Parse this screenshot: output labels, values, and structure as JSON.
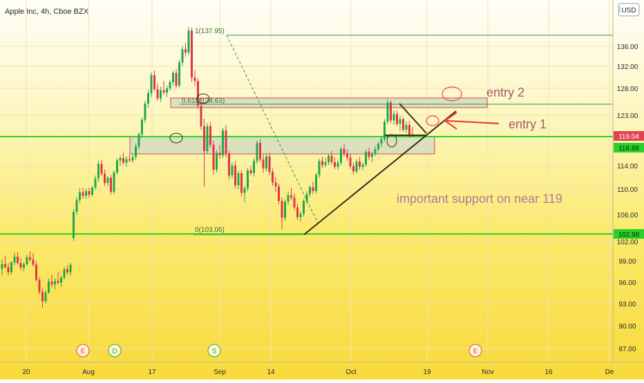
{
  "header": {
    "title": "Apple Inc, 4h, Cboe BZX",
    "currency": "USD"
  },
  "chart_data": {
    "type": "candlestick",
    "title": "Apple Inc, 4h, Cboe BZX",
    "y_ticks": [
      "136.00",
      "132.00",
      "128.00",
      "123.00",
      "114.00",
      "110.00",
      "106.00",
      "102.00",
      "99.00",
      "96.00",
      "93.00",
      "90.00",
      "87.00"
    ],
    "x_ticks": [
      "20",
      "Aug",
      "17",
      "Sep",
      "14",
      "Oct",
      "19",
      "Nov",
      "16",
      "De"
    ],
    "price_tags": {
      "current": "119.04",
      "support": "118.88",
      "low_line": "102.98"
    },
    "fib_levels": [
      {
        "label": "1(137.95)",
        "price": 137.95
      },
      {
        "label": "0.618(124.63)",
        "price": 124.63
      },
      {
        "label": "0(103.06)",
        "price": 103.06
      }
    ],
    "events": [
      {
        "label": "E",
        "kind": "earnings",
        "x": "Jul 30"
      },
      {
        "label": "D",
        "kind": "dividend",
        "x": "Aug 7"
      },
      {
        "label": "S",
        "kind": "split",
        "x": "Aug 31"
      },
      {
        "label": "E",
        "kind": "earnings",
        "x": "Oct 29"
      }
    ],
    "annotations": {
      "entry1": "entry 1",
      "entry2": "entry 2",
      "support_note": "important support on near 119"
    },
    "candles": [
      [
        96.2,
        97.8,
        95.1,
        97.0
      ],
      [
        97.0,
        98.5,
        96.3,
        96.5
      ],
      [
        96.5,
        97.2,
        95.0,
        95.6
      ],
      [
        95.6,
        97.5,
        95.2,
        97.3
      ],
      [
        97.3,
        99.0,
        96.8,
        98.3
      ],
      [
        98.3,
        99.1,
        96.9,
        97.2
      ],
      [
        97.2,
        98.0,
        96.0,
        96.4
      ],
      [
        96.4,
        97.3,
        95.8,
        97.0
      ],
      [
        97.0,
        98.6,
        96.7,
        98.2
      ],
      [
        98.2,
        99.2,
        97.5,
        97.8
      ],
      [
        97.8,
        98.9,
        96.6,
        96.9
      ],
      [
        96.9,
        97.5,
        94.0,
        94.3
      ],
      [
        94.3,
        94.8,
        91.8,
        92.2
      ],
      [
        92.2,
        92.8,
        89.5,
        90.6
      ],
      [
        90.6,
        92.5,
        90.2,
        92.1
      ],
      [
        92.1,
        94.5,
        91.9,
        94.0
      ],
      [
        94.0,
        95.2,
        93.0,
        93.5
      ],
      [
        93.5,
        94.6,
        92.6,
        94.1
      ],
      [
        94.1,
        95.6,
        93.5,
        93.8
      ],
      [
        93.8,
        95.0,
        93.1,
        94.7
      ],
      [
        94.7,
        96.5,
        94.3,
        96.1
      ],
      [
        96.1,
        96.8,
        95.2,
        95.6
      ],
      [
        95.6,
        97.2,
        95.0,
        96.9
      ],
      [
        101.5,
        106.5,
        101.0,
        106.0
      ],
      [
        106.0,
        108.6,
        105.5,
        108.1
      ],
      [
        108.1,
        110.1,
        107.5,
        109.4
      ],
      [
        109.4,
        110.2,
        108.3,
        108.8
      ],
      [
        108.8,
        110.0,
        108.2,
        109.6
      ],
      [
        109.6,
        110.2,
        108.5,
        109.0
      ],
      [
        109.0,
        110.5,
        108.7,
        110.2
      ],
      [
        110.2,
        112.3,
        109.8,
        111.8
      ],
      [
        111.8,
        114.8,
        111.2,
        114.3
      ],
      [
        114.3,
        115.0,
        112.2,
        112.6
      ],
      [
        112.6,
        113.3,
        110.5,
        111.0
      ],
      [
        111.0,
        112.2,
        110.4,
        111.9
      ],
      [
        111.9,
        112.4,
        109.0,
        109.5
      ],
      [
        109.5,
        113.2,
        109.1,
        112.8
      ],
      [
        112.8,
        115.2,
        112.5,
        114.9
      ],
      [
        114.9,
        115.8,
        114.0,
        115.3
      ],
      [
        115.3,
        116.2,
        114.2,
        114.5
      ],
      [
        114.5,
        115.6,
        113.8,
        115.1
      ],
      [
        115.1,
        115.9,
        114.6,
        114.9
      ],
      [
        114.9,
        116.0,
        114.5,
        115.5
      ],
      [
        115.5,
        117.8,
        115.0,
        117.3
      ],
      [
        117.3,
        119.8,
        116.8,
        119.4
      ],
      [
        119.4,
        122.3,
        118.8,
        121.9
      ],
      [
        121.9,
        125.2,
        121.3,
        124.7
      ],
      [
        124.7,
        127.0,
        124.0,
        126.5
      ],
      [
        126.5,
        130.1,
        125.8,
        129.6
      ],
      [
        129.6,
        130.4,
        126.8,
        127.2
      ],
      [
        127.2,
        128.2,
        125.2,
        125.6
      ],
      [
        125.6,
        127.6,
        125.0,
        127.0
      ],
      [
        127.0,
        128.6,
        126.2,
        126.6
      ],
      [
        126.6,
        127.8,
        125.8,
        127.3
      ],
      [
        127.3,
        128.8,
        126.9,
        128.4
      ],
      [
        128.4,
        130.4,
        127.8,
        130.0
      ],
      [
        130.0,
        130.7,
        127.4,
        127.8
      ],
      [
        127.8,
        132.3,
        127.5,
        131.8
      ],
      [
        131.8,
        134.6,
        131.2,
        134.1
      ],
      [
        134.1,
        135.2,
        132.8,
        133.5
      ],
      [
        133.5,
        137.95,
        133.0,
        137.3
      ],
      [
        137.3,
        137.8,
        128.5,
        129.2
      ],
      [
        129.2,
        130.5,
        127.8,
        128.6
      ],
      [
        128.6,
        129.1,
        123.8,
        124.3
      ],
      [
        124.3,
        125.6,
        120.2,
        120.8
      ],
      [
        120.8,
        122.1,
        110.4,
        116.5
      ],
      [
        116.5,
        121.3,
        116.0,
        120.8
      ],
      [
        120.8,
        121.5,
        117.1,
        117.6
      ],
      [
        117.6,
        118.3,
        112.5,
        113.3
      ],
      [
        113.3,
        116.7,
        112.8,
        116.2
      ],
      [
        116.2,
        117.6,
        115.2,
        115.8
      ],
      [
        115.8,
        120.5,
        115.3,
        120.1
      ],
      [
        120.1,
        121.0,
        115.4,
        116.0
      ],
      [
        116.0,
        116.5,
        111.6,
        112.3
      ],
      [
        112.3,
        114.6,
        111.8,
        114.0
      ],
      [
        114.0,
        114.8,
        110.1,
        110.6
      ],
      [
        110.6,
        113.1,
        110.0,
        112.7
      ],
      [
        112.7,
        113.2,
        108.7,
        109.3
      ],
      [
        109.3,
        110.5,
        107.7,
        110.1
      ],
      [
        110.1,
        113.6,
        109.6,
        113.2
      ],
      [
        113.2,
        113.9,
        112.3,
        112.7
      ],
      [
        112.7,
        115.2,
        112.1,
        114.8
      ],
      [
        114.8,
        118.3,
        114.3,
        117.9
      ],
      [
        117.9,
        118.6,
        114.6,
        115.1
      ],
      [
        115.1,
        115.9,
        112.8,
        113.5
      ],
      [
        113.5,
        116.0,
        113.0,
        115.6
      ],
      [
        115.6,
        116.2,
        112.4,
        112.9
      ],
      [
        112.9,
        113.5,
        110.5,
        111.1
      ],
      [
        111.1,
        112.0,
        109.5,
        110.4
      ],
      [
        110.4,
        110.9,
        107.4,
        107.9
      ],
      [
        107.9,
        108.5,
        103.06,
        105.0
      ],
      [
        105.0,
        108.2,
        104.5,
        107.8
      ],
      [
        107.8,
        109.5,
        107.2,
        108.9
      ],
      [
        108.9,
        110.2,
        108.0,
        108.5
      ],
      [
        108.5,
        109.2,
        106.3,
        106.8
      ],
      [
        106.8,
        107.4,
        104.6,
        105.1
      ],
      [
        105.1,
        106.1,
        104.3,
        105.7
      ],
      [
        105.7,
        108.2,
        105.2,
        107.9
      ],
      [
        107.9,
        109.6,
        107.4,
        109.1
      ],
      [
        109.1,
        110.6,
        108.6,
        110.3
      ],
      [
        110.3,
        111.2,
        109.1,
        109.6
      ],
      [
        109.6,
        112.8,
        109.2,
        112.4
      ],
      [
        112.4,
        115.2,
        111.9,
        114.8
      ],
      [
        114.8,
        115.5,
        113.6,
        114.1
      ],
      [
        114.1,
        115.3,
        113.7,
        114.6
      ],
      [
        114.6,
        116.0,
        114.1,
        115.7
      ],
      [
        115.7,
        116.6,
        114.2,
        114.6
      ],
      [
        114.6,
        115.4,
        113.4,
        113.8
      ],
      [
        113.8,
        115.0,
        113.3,
        114.5
      ],
      [
        114.5,
        117.2,
        114.1,
        116.9
      ],
      [
        116.9,
        117.8,
        115.6,
        116.1
      ],
      [
        116.1,
        116.8,
        114.8,
        115.4
      ],
      [
        115.4,
        116.0,
        113.4,
        113.9
      ],
      [
        113.9,
        114.5,
        112.5,
        113.0
      ],
      [
        113.0,
        115.1,
        112.6,
        114.7
      ],
      [
        114.7,
        115.5,
        113.3,
        113.8
      ],
      [
        113.8,
        114.6,
        113.2,
        114.2
      ],
      [
        114.2,
        116.8,
        113.8,
        116.4
      ],
      [
        116.4,
        117.1,
        115.0,
        115.5
      ],
      [
        115.5,
        116.4,
        114.6,
        116.0
      ],
      [
        116.0,
        117.3,
        115.6,
        116.8
      ],
      [
        116.8,
        118.1,
        116.5,
        117.8
      ],
      [
        117.8,
        119.0,
        117.2,
        118.6
      ],
      [
        118.6,
        122.0,
        118.2,
        121.6
      ],
      [
        121.6,
        125.4,
        121.1,
        124.9
      ],
      [
        124.9,
        125.2,
        121.3,
        121.8
      ],
      [
        121.8,
        123.5,
        121.0,
        122.9
      ],
      [
        122.9,
        123.4,
        120.8,
        121.2
      ],
      [
        121.2,
        122.6,
        120.0,
        122.0
      ],
      [
        122.0,
        122.4,
        119.8,
        120.2
      ],
      [
        120.2,
        121.6,
        119.6,
        121.0
      ],
      [
        121.0,
        121.7,
        118.8,
        119.3
      ],
      [
        119.3,
        120.7,
        118.9,
        119.04
      ]
    ]
  }
}
